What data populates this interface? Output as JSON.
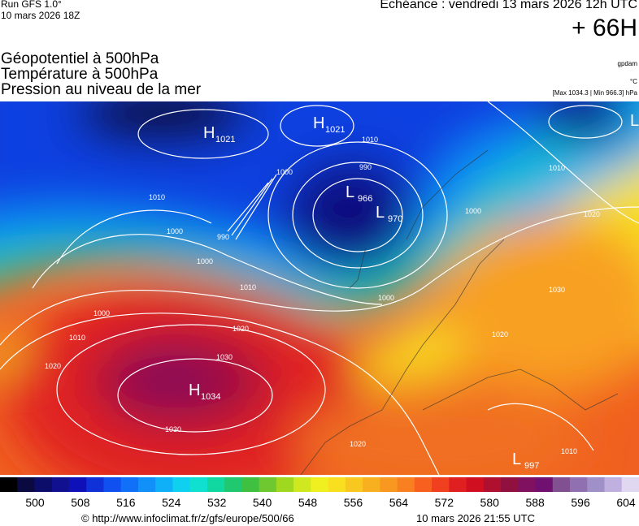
{
  "header": {
    "run": "Run GFS 1.0°",
    "run_date": "10 mars 2026 18Z",
    "valid": "Echéance : vendredi 13 mars 2026 12h UTC",
    "lead": "+ 66H",
    "titles": [
      "Géopotentiel à 500hPa",
      "Température à 500hPa",
      "Pression au niveau de la mer"
    ],
    "units": [
      "gpdam",
      "°C",
      "[Max 1034.3 | Min 966.3] hPa"
    ]
  },
  "map": {
    "centers": [
      {
        "letter": "H",
        "value": "1021"
      },
      {
        "letter": "H",
        "value": "1021"
      },
      {
        "letter": "L",
        "value": "966"
      },
      {
        "letter": "L",
        "value": "970"
      },
      {
        "letter": "H",
        "value": "1034"
      },
      {
        "letter": "L",
        "value": "997"
      },
      {
        "letter": "L"
      }
    ],
    "isobar_labels": [
      "1010",
      "990",
      "1000",
      "1010",
      "1000",
      "990",
      "1000",
      "1010",
      "1000",
      "1000",
      "1010",
      "1020",
      "1020",
      "1030",
      "1030",
      "1020",
      "1010",
      "1020",
      "1000",
      "1030",
      "1020",
      "1010"
    ]
  },
  "colorbar": {
    "labels": [
      "500",
      "508",
      "516",
      "524",
      "532",
      "540",
      "548",
      "556",
      "564",
      "572",
      "580",
      "588",
      "596",
      "604"
    ],
    "colors": [
      "#000000",
      "#0a0a40",
      "#0c0c6a",
      "#101090",
      "#1010b8",
      "#1030d8",
      "#1050f0",
      "#1070f8",
      "#1090f8",
      "#10b0f8",
      "#10d0f0",
      "#10e0d0",
      "#10d8a0",
      "#20c870",
      "#40c040",
      "#70c830",
      "#a0d820",
      "#d0e820",
      "#f0f020",
      "#f8e020",
      "#f8c820",
      "#f8b020",
      "#f89820",
      "#f88020",
      "#f86020",
      "#f04020",
      "#e02020",
      "#d01020",
      "#b01030",
      "#901040",
      "#801060",
      "#701070",
      "#805090",
      "#9070b0",
      "#a090c8",
      "#c0b0e0",
      "#e0d8f0"
    ]
  },
  "footer": {
    "source": "© http://www.infoclimat.fr/z/gfs/europe/500/66",
    "issued": "10 mars 2026 21:55 UTC"
  }
}
